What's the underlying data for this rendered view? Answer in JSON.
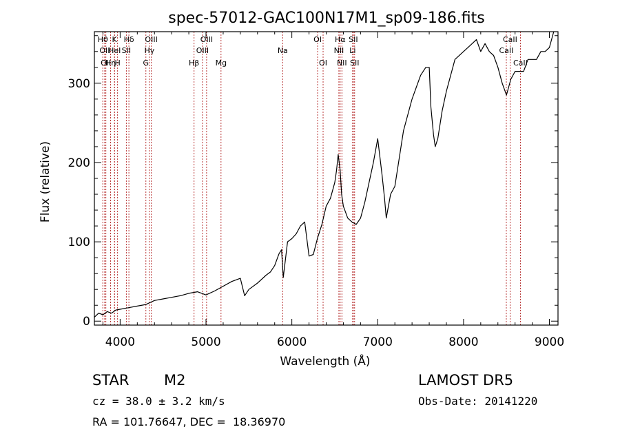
{
  "chart_data": {
    "type": "line",
    "title": "spec-57012-GAC100N17M1_sp09-186.fits",
    "xlabel": "Wavelength (Å)",
    "ylabel": "Flux (relative)",
    "xlim": [
      3700,
      9100
    ],
    "ylim": [
      -5,
      365
    ],
    "xticks": [
      4000,
      5000,
      6000,
      7000,
      8000,
      9000
    ],
    "yticks": [
      0,
      100,
      200,
      300
    ],
    "grid": false,
    "series": [
      {
        "x": [
          3700,
          3750,
          3800,
          3850,
          3900,
          3950,
          4000,
          4100,
          4200,
          4300,
          4400,
          4500,
          4600,
          4700,
          4800,
          4900,
          5000,
          5100,
          5200,
          5300,
          5400,
          5450,
          5500,
          5600,
          5700,
          5750,
          5800,
          5850,
          5880,
          5900,
          5950,
          6000,
          6050,
          6100,
          6150,
          6200,
          6250,
          6300,
          6350,
          6400,
          6450,
          6500,
          6520,
          6540,
          6563,
          6580,
          6600,
          6650,
          6700,
          6750,
          6800,
          6850,
          6900,
          6950,
          7000,
          7050,
          7080,
          7100,
          7150,
          7200,
          7300,
          7400,
          7500,
          7560,
          7600,
          7620,
          7650,
          7670,
          7700,
          7750,
          7800,
          7900,
          8000,
          8100,
          8150,
          8200,
          8250,
          8300,
          8350,
          8400,
          8450,
          8500,
          8550,
          8600,
          8650,
          8700,
          8750,
          8800,
          8850,
          8900,
          8950,
          9000,
          9050
        ],
        "y": [
          5,
          10,
          8,
          12,
          10,
          14,
          15,
          17,
          19,
          21,
          26,
          28,
          30,
          32,
          35,
          37,
          33,
          38,
          44,
          50,
          54,
          32,
          40,
          48,
          58,
          62,
          70,
          85,
          90,
          55,
          100,
          104,
          110,
          120,
          125,
          82,
          84,
          105,
          122,
          145,
          155,
          175,
          190,
          210,
          190,
          160,
          145,
          130,
          125,
          122,
          130,
          150,
          175,
          200,
          230,
          185,
          155,
          130,
          160,
          170,
          240,
          280,
          310,
          320,
          320,
          270,
          235,
          220,
          230,
          265,
          290,
          330,
          340,
          350,
          355,
          340,
          350,
          340,
          335,
          320,
          300,
          285,
          305,
          315,
          315,
          315,
          330,
          330,
          330,
          340,
          340,
          345,
          365
        ]
      }
    ],
    "lines": [
      {
        "wave": 3798,
        "label": "H&#952;",
        "row": 0
      },
      {
        "wave": 3820,
        "label": "OII",
        "row": 1
      },
      {
        "wave": 3834,
        "label": "OII",
        "row": 2
      },
      {
        "wave": 3889,
        "label": "H&#951;",
        "row": 2
      },
      {
        "wave": 3934,
        "label": "K",
        "row": 0
      },
      {
        "wave": 3935,
        "label": "HeI",
        "row": 1
      },
      {
        "wave": 3970,
        "label": "H",
        "row": 2
      },
      {
        "wave": 4072,
        "label": "SII",
        "row": 1
      },
      {
        "wave": 4102,
        "label": "H&#948;",
        "row": 0
      },
      {
        "wave": 4300,
        "label": "G",
        "row": 2
      },
      {
        "wave": 4341,
        "label": "H&#947;",
        "row": 1
      },
      {
        "wave": 4363,
        "label": "OIII",
        "row": 0
      },
      {
        "wave": 4861,
        "label": "H&#946;",
        "row": 2
      },
      {
        "wave": 4959,
        "label": "OIII",
        "row": 1
      },
      {
        "wave": 5007,
        "label": "OIII",
        "row": 0
      },
      {
        "wave": 5175,
        "label": "Mg",
        "row": 2
      },
      {
        "wave": 5893,
        "label": "Na",
        "row": 1
      },
      {
        "wave": 6300,
        "label": "OI",
        "row": 0
      },
      {
        "wave": 6364,
        "label": "OI",
        "row": 2
      },
      {
        "wave": 6548,
        "label": "NII",
        "row": 1
      },
      {
        "wave": 6563,
        "label": "H&#945;",
        "row": 0
      },
      {
        "wave": 6583,
        "label": "NII",
        "row": 2
      },
      {
        "wave": 6708,
        "label": "Li",
        "row": 1
      },
      {
        "wave": 6716,
        "label": "SII",
        "row": 0
      },
      {
        "wave": 6731,
        "label": "SII",
        "row": 2
      },
      {
        "wave": 8498,
        "label": "CaII",
        "row": 1
      },
      {
        "wave": 8542,
        "label": "CaII",
        "row": 0
      },
      {
        "wave": 8662,
        "label": "CaII",
        "row": 2
      }
    ]
  },
  "info": {
    "object_class": "STAR",
    "subclass": "M2",
    "survey": "LAMOST DR5",
    "cz": "cz = 38.0 ± 3.2 km/s",
    "obs_date": "Obs-Date: 20141220",
    "coords": "RA = 101.76647, DEC =  18.36970"
  }
}
